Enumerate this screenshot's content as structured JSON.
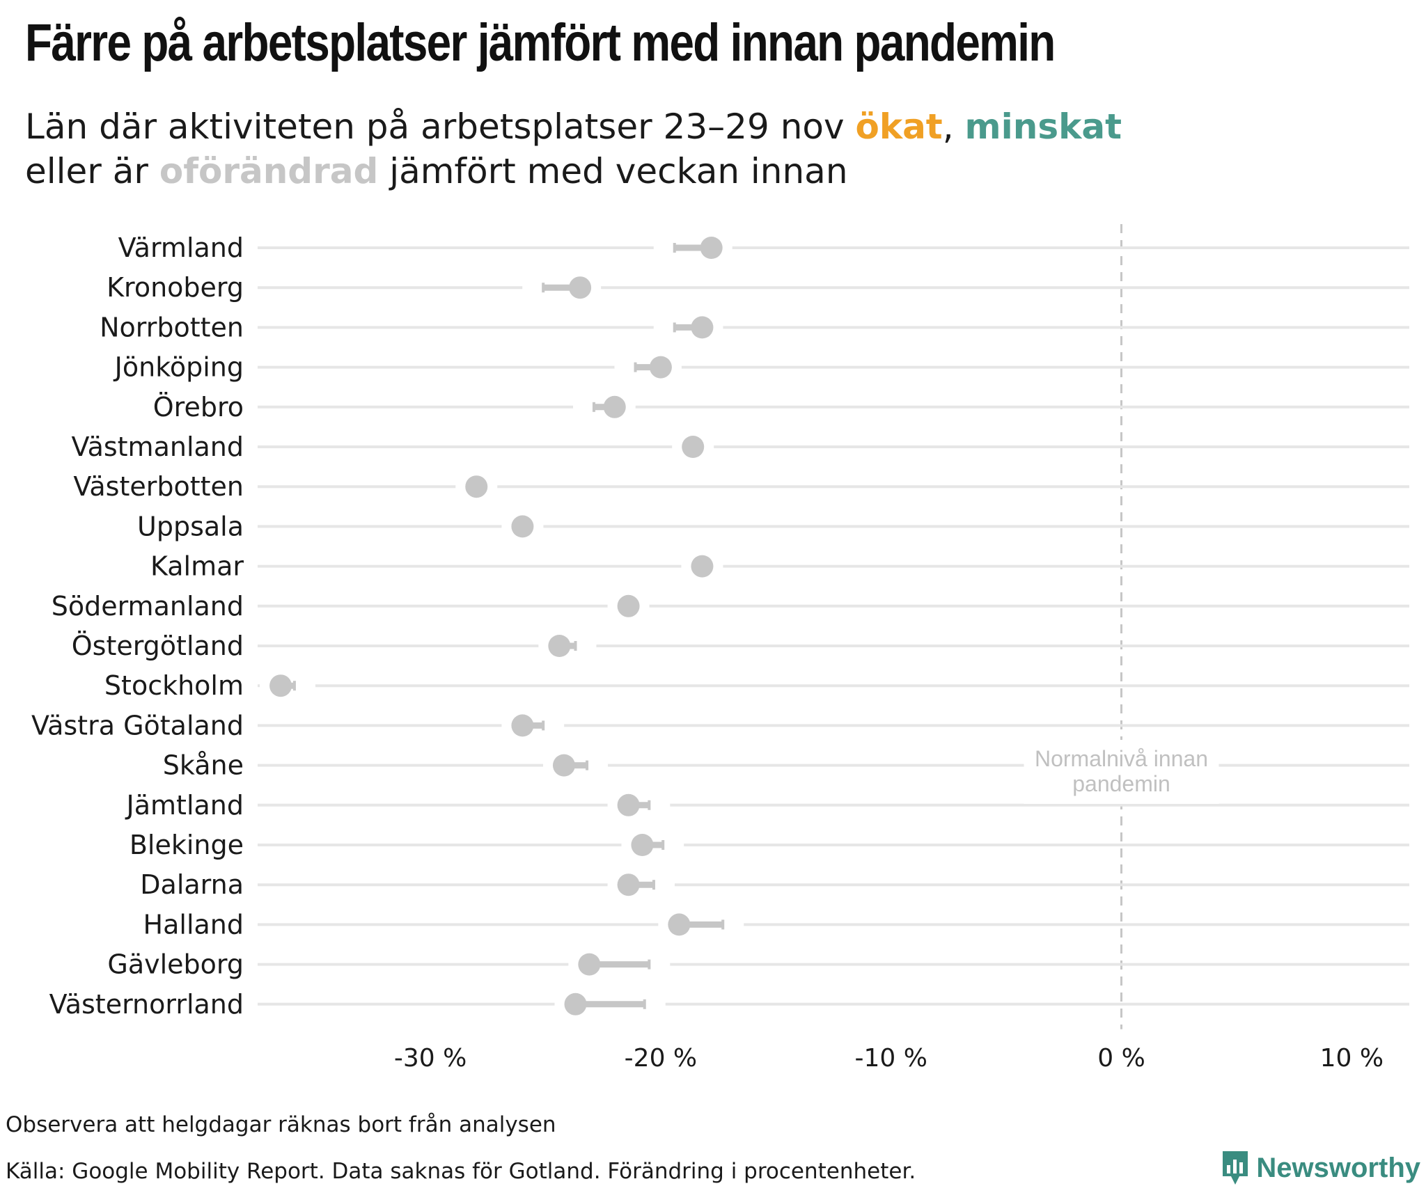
{
  "title": "Färre på arbetsplatser jämfört med innan pandemin",
  "subtitle": {
    "part1": "Län där aktiviteten på arbetsplatser 23–29 nov ",
    "increased": "ökat",
    "sep": ", ",
    "decreased": "minskat",
    "part2": "eller är ",
    "unchanged": "oförändrad",
    "part3": " jämfört med veckan innan"
  },
  "colors": {
    "increased": "#f0a024",
    "decreased": "#4a9a8c",
    "unchanged": "#c6c6c6",
    "gridline": "#e6e6e6",
    "reference_line": "#c6c6c6",
    "brand": "#3a8c80"
  },
  "chart_data": {
    "type": "dumbbell",
    "xlim": [
      -37.5,
      12.5
    ],
    "xticks": [
      -30,
      -20,
      -10,
      0,
      10
    ],
    "xtick_labels": [
      "-30 %",
      "-20 %",
      "-10 %",
      "0 %",
      "10 %"
    ],
    "reference_line": {
      "x": 0,
      "label_line1": "Normalnivå innan",
      "label_line2": "pandemin"
    },
    "grid": true,
    "rows": [
      {
        "region": "Värmland",
        "current": -17.8,
        "previous": -19.4,
        "status": "unchanged"
      },
      {
        "region": "Kronoberg",
        "current": -23.5,
        "previous": -25.1,
        "status": "unchanged"
      },
      {
        "region": "Norrbotten",
        "current": -18.2,
        "previous": -19.4,
        "status": "unchanged"
      },
      {
        "region": "Jönköping",
        "current": -20.0,
        "previous": -21.1,
        "status": "unchanged"
      },
      {
        "region": "Örebro",
        "current": -22.0,
        "previous": -22.9,
        "status": "unchanged"
      },
      {
        "region": "Västmanland",
        "current": -18.6,
        "previous": -18.6,
        "status": "unchanged"
      },
      {
        "region": "Västerbotten",
        "current": -28.0,
        "previous": -28.0,
        "status": "unchanged"
      },
      {
        "region": "Uppsala",
        "current": -26.0,
        "previous": -26.0,
        "status": "unchanged"
      },
      {
        "region": "Kalmar",
        "current": -18.2,
        "previous": -18.2,
        "status": "unchanged"
      },
      {
        "region": "Södermanland",
        "current": -21.4,
        "previous": -21.4,
        "status": "unchanged"
      },
      {
        "region": "Östergötland",
        "current": -24.4,
        "previous": -23.7,
        "status": "unchanged"
      },
      {
        "region": "Stockholm",
        "current": -36.5,
        "previous": -35.9,
        "status": "unchanged"
      },
      {
        "region": "Västra Götaland",
        "current": -26.0,
        "previous": -25.1,
        "status": "unchanged"
      },
      {
        "region": "Skåne",
        "current": -24.2,
        "previous": -23.2,
        "status": "unchanged"
      },
      {
        "region": "Jämtland",
        "current": -21.4,
        "previous": -20.5,
        "status": "unchanged"
      },
      {
        "region": "Blekinge",
        "current": -20.8,
        "previous": -19.9,
        "status": "unchanged"
      },
      {
        "region": "Dalarna",
        "current": -21.4,
        "previous": -20.3,
        "status": "unchanged"
      },
      {
        "region": "Halland",
        "current": -19.2,
        "previous": -17.3,
        "status": "unchanged"
      },
      {
        "region": "Gävleborg",
        "current": -23.1,
        "previous": -20.5,
        "status": "unchanged"
      },
      {
        "region": "Västernorrland",
        "current": -23.7,
        "previous": -20.7,
        "status": "unchanged"
      }
    ]
  },
  "footnote": "Observera att helgdagar räknas bort från analysen",
  "source": "Källa: Google Mobility Report. Data saknas för Gotland. Förändring i procentenheter.",
  "logo": {
    "text": "Newsworthy",
    "icon": "bar-chart-pin-icon"
  }
}
